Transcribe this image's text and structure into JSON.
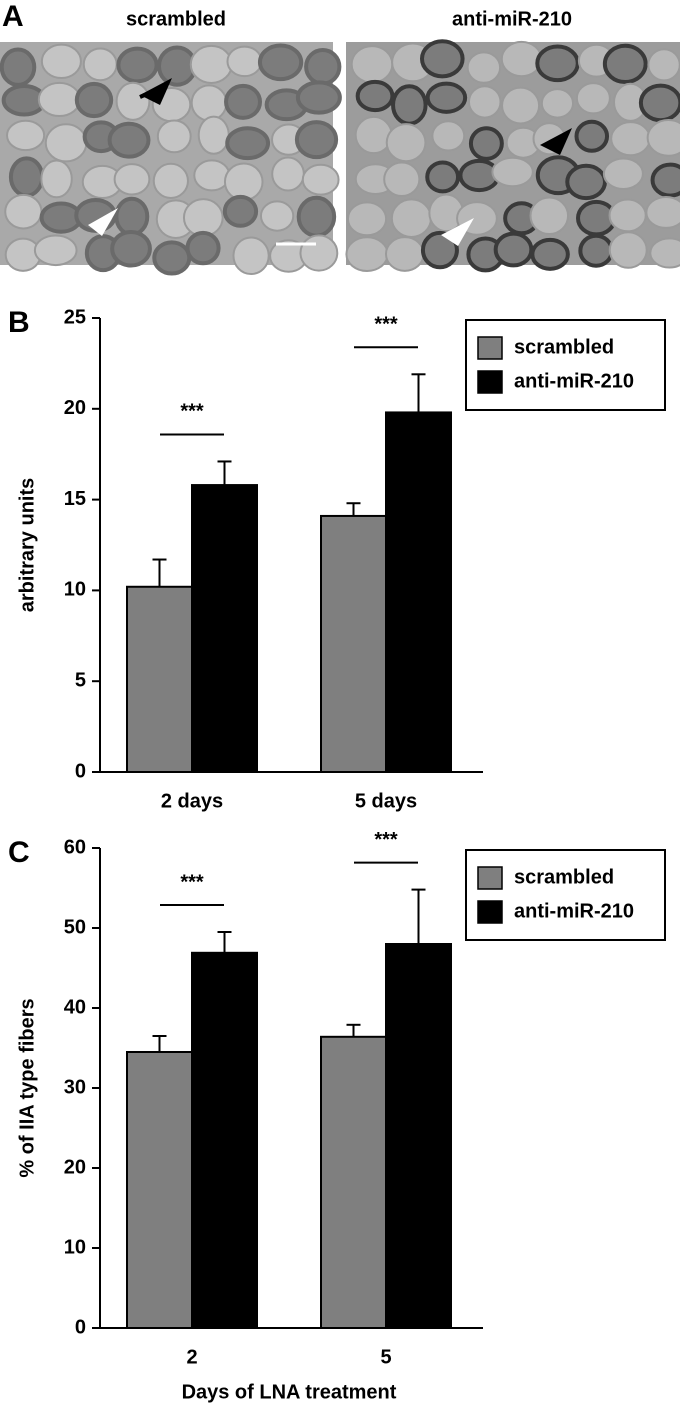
{
  "panel_a": {
    "label": "A",
    "images": [
      {
        "title": "scrambled"
      },
      {
        "title": "anti-miR-210"
      }
    ]
  },
  "chart_data": [
    {
      "type": "bar",
      "panel": "B",
      "ylabel": "arbitrary units",
      "categories": [
        "2 days",
        "5 days"
      ],
      "series": [
        {
          "name": "scrambled",
          "color": "#7f7f7f",
          "values": [
            10.2,
            14.1
          ],
          "errors": [
            1.5,
            0.7
          ]
        },
        {
          "name": "anti-miR-210",
          "color": "#000000",
          "values": [
            15.8,
            19.8
          ],
          "errors": [
            1.3,
            2.1
          ]
        }
      ],
      "significance": [
        "***",
        "***"
      ],
      "ylim": [
        0,
        25
      ],
      "yticks": [
        0,
        5,
        10,
        15,
        20,
        25
      ],
      "legend": "upper right"
    },
    {
      "type": "bar",
      "panel": "C",
      "ylabel": "% of IIA type fibers",
      "xlabel": "Days of LNA treatment",
      "categories": [
        "2",
        "5"
      ],
      "series": [
        {
          "name": "scrambled",
          "color": "#7f7f7f",
          "values": [
            34.5,
            36.4
          ],
          "errors": [
            2.0,
            1.5
          ]
        },
        {
          "name": "anti-miR-210",
          "color": "#000000",
          "values": [
            46.9,
            48.0
          ],
          "errors": [
            2.6,
            6.8
          ]
        }
      ],
      "significance": [
        "***",
        "***"
      ],
      "ylim": [
        0,
        60
      ],
      "yticks": [
        0,
        10,
        20,
        30,
        40,
        50,
        60
      ],
      "legend": "upper right"
    }
  ]
}
